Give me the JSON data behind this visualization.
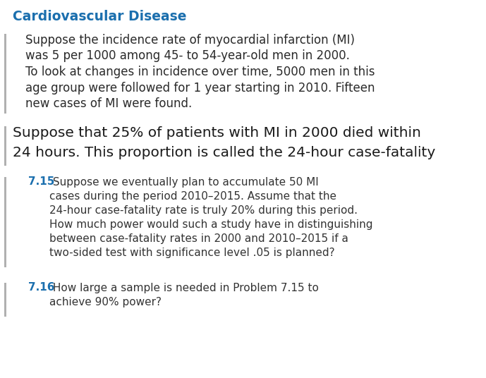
{
  "title": "Cardiovascular Disease",
  "title_color": "#1b6fae",
  "title_fontsize": 13.5,
  "background_color": "#ffffff",
  "left_bar_color": "#b0b0b0",
  "paragraph1_lines": [
    "Suppose the incidence rate of myocardial infarction (MI)",
    "was 5 per 1000 among 45- to 54-year-old men in 2000.",
    "To look at changes in incidence over time, 5000 men in this",
    "age group were followed for 1 year starting in 2010. Fifteen",
    "new cases of MI were found."
  ],
  "paragraph1_fontsize": 12.0,
  "paragraph1_color": "#2a2a2a",
  "paragraph2_lines": [
    "Suppose that 25% of patients with MI in 2000 died within",
    "24 hours. This proportion is called the 24-hour case-fatality"
  ],
  "paragraph2_fontsize": 14.5,
  "paragraph2_color": "#1a1a1a",
  "problem715_label": "7.15",
  "problem715_label_color": "#1b6fae",
  "problem715_first_line": " Suppose we eventually plan to accumulate 50 MI",
  "problem715_rest_lines": [
    "cases during the period 2010–2015. Assume that the",
    "24-hour case-fatality rate is truly 20% during this period.",
    "How much power would such a study have in distinguishing",
    "between case-fatality rates in 2000 and 2010–2015 if a",
    "two-sided test with significance level .05 is planned?"
  ],
  "problem715_fontsize": 11.0,
  "problem715_color": "#333333",
  "problem716_label": "7.16",
  "problem716_label_color": "#1b6fae",
  "problem716_first_line": " How large a sample is needed in Problem 7.15 to",
  "problem716_rest_lines": [
    "achieve 90% power?"
  ],
  "problem716_fontsize": 11.0,
  "problem716_color": "#333333",
  "fig_width": 6.89,
  "fig_height": 5.36,
  "dpi": 100
}
